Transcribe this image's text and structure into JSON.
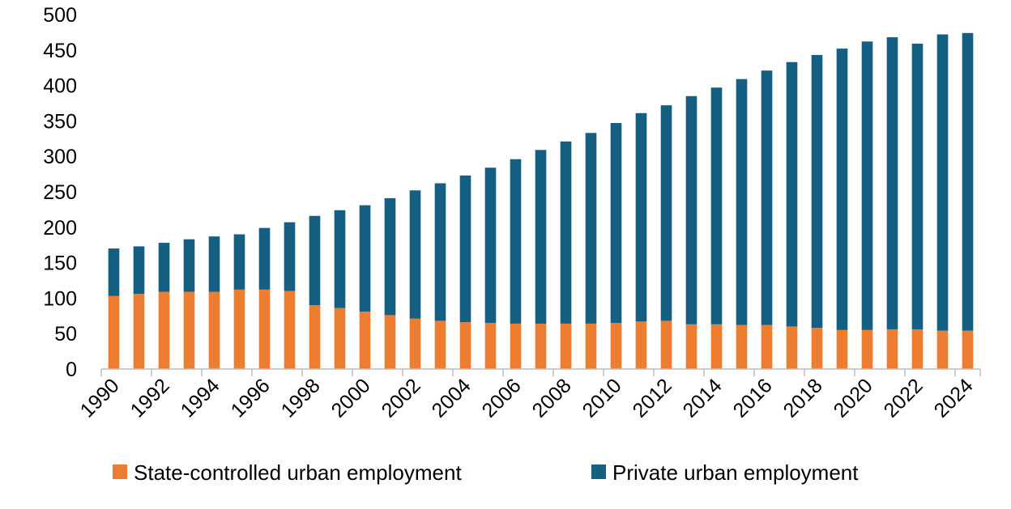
{
  "chart_data": {
    "type": "bar",
    "stacked": true,
    "title": "",
    "xlabel": "",
    "ylabel": "",
    "ylim": [
      0,
      500
    ],
    "yticks": [
      0,
      50,
      100,
      150,
      200,
      250,
      300,
      350,
      400,
      450,
      500
    ],
    "xtick_labels": [
      "1990",
      "1992",
      "1994",
      "1996",
      "1998",
      "2000",
      "2002",
      "2004",
      "2006",
      "2008",
      "2010",
      "2012",
      "2014",
      "2016",
      "2018",
      "2020",
      "2022",
      "2024"
    ],
    "categories": [
      "1990",
      "1991",
      "1992",
      "1993",
      "1994",
      "1995",
      "1996",
      "1997",
      "1998",
      "1999",
      "2000",
      "2001",
      "2002",
      "2003",
      "2004",
      "2005",
      "2006",
      "2007",
      "2008",
      "2009",
      "2010",
      "2011",
      "2012",
      "2013",
      "2014",
      "2015",
      "2016",
      "2017",
      "2018",
      "2019",
      "2020",
      "2021",
      "2022",
      "2023",
      "2024"
    ],
    "legend_position": "bottom",
    "grid": false,
    "series": [
      {
        "name": "State-controlled urban employment",
        "color": "#ED7D31",
        "values": [
          103,
          106,
          109,
          109,
          109,
          112,
          112,
          110,
          90,
          86,
          81,
          76,
          71,
          68,
          66,
          65,
          64,
          64,
          64,
          64,
          65,
          67,
          68,
          63,
          63,
          62,
          62,
          60,
          58,
          55,
          55,
          56,
          56,
          54,
          54
        ]
      },
      {
        "name": "Private urban employment",
        "color": "#156082",
        "values": [
          67,
          67,
          69,
          74,
          78,
          78,
          87,
          97,
          126,
          138,
          150,
          165,
          181,
          194,
          207,
          219,
          232,
          245,
          257,
          269,
          282,
          294,
          304,
          322,
          334,
          347,
          359,
          373,
          385,
          397,
          407,
          412,
          403,
          418,
          420
        ]
      }
    ]
  }
}
